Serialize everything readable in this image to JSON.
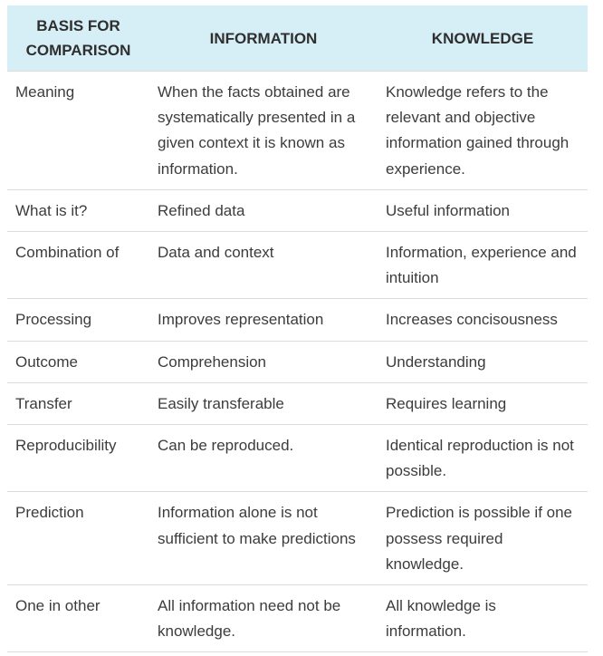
{
  "table": {
    "headers": [
      "BASIS FOR COMPARISON",
      "INFORMATION",
      "KNOWLEDGE"
    ],
    "rows": [
      [
        "Meaning",
        "When the facts obtained are systematically presented in a given context it is known as information.",
        "Knowledge refers to the relevant and objective information gained through experience."
      ],
      [
        "What is it?",
        "Refined data",
        "Useful information"
      ],
      [
        "Combination of",
        "Data and context",
        "Information, experience and intuition"
      ],
      [
        "Processing",
        "Improves representation",
        "Increases concisousness"
      ],
      [
        "Outcome",
        "Comprehension",
        "Understanding"
      ],
      [
        "Transfer",
        "Easily transferable",
        "Requires learning"
      ],
      [
        "Reproducibility",
        "Can be reproduced.",
        "Identical reproduction is not possible."
      ],
      [
        "Prediction",
        "Information alone is not sufficient to make predictions",
        "Prediction is possible if one possess required knowledge."
      ],
      [
        "One in other",
        "All information need not be knowledge.",
        "All knowledge is information."
      ]
    ]
  },
  "colors": {
    "header_background": "#d6eef6",
    "row_border": "#dcdcdc",
    "text": "#3c3c3c"
  }
}
